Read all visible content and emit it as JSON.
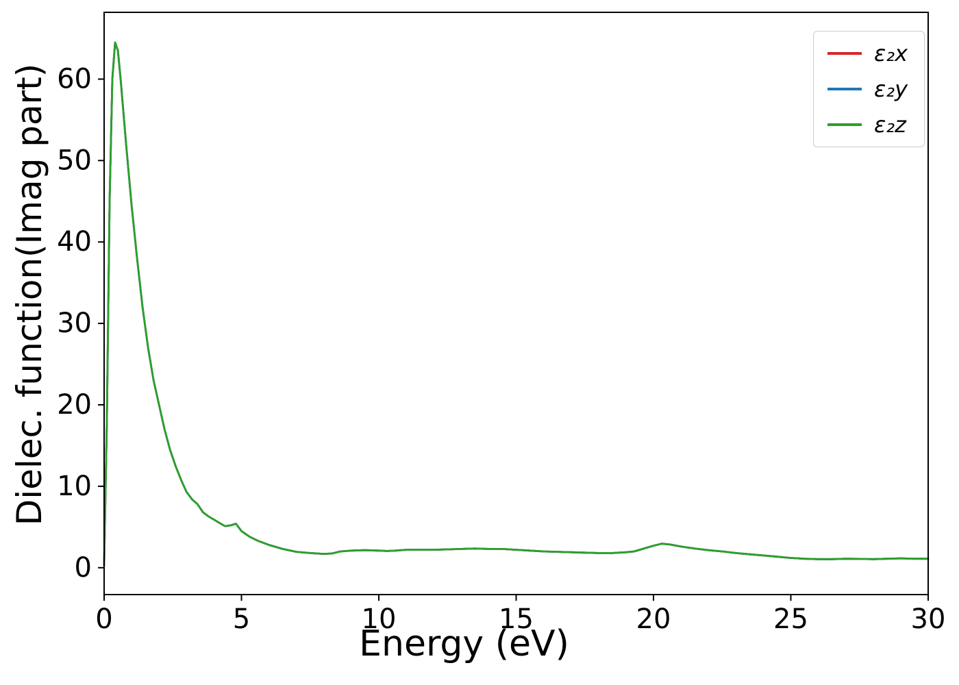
{
  "chart_data": {
    "type": "line",
    "title": "",
    "xlabel": "Energy (eV)",
    "ylabel": "Dielec. function(Imag part)",
    "xlim": [
      0,
      30
    ],
    "ylim": [
      -3.3,
      68.2
    ],
    "x_ticks": [
      0,
      5,
      10,
      15,
      20,
      25,
      30
    ],
    "y_ticks": [
      0,
      10,
      20,
      30,
      40,
      50,
      60
    ],
    "grid": false,
    "legend_position": "upper right",
    "axis_color": "#000000",
    "x": [
      0,
      0.1,
      0.2,
      0.3,
      0.4,
      0.5,
      0.6,
      0.8,
      1.0,
      1.2,
      1.4,
      1.6,
      1.8,
      2.0,
      2.2,
      2.4,
      2.6,
      2.8,
      3.0,
      3.2,
      3.4,
      3.6,
      3.8,
      4.0,
      4.2,
      4.4,
      4.6,
      4.8,
      5.0,
      5.3,
      5.6,
      6.0,
      6.5,
      7.0,
      7.5,
      8.0,
      8.3,
      8.6,
      9.0,
      9.5,
      10.0,
      10.3,
      10.6,
      11.0,
      11.5,
      12.0,
      12.5,
      13.0,
      13.5,
      14.0,
      14.5,
      15.0,
      15.5,
      16.0,
      16.5,
      17.0,
      17.5,
      18.0,
      18.5,
      19.0,
      19.3,
      19.6,
      20.0,
      20.3,
      20.6,
      21.0,
      21.5,
      22.0,
      22.5,
      23.0,
      23.5,
      24.0,
      24.5,
      25.0,
      25.5,
      26.0,
      26.5,
      27.0,
      27.5,
      28.0,
      28.5,
      29.0,
      29.5,
      30.0
    ],
    "series": [
      {
        "name": "ε₂x",
        "color": "#d62728",
        "values": [
          0.3,
          18,
          45,
          60,
          64.5,
          63.5,
          60,
          52,
          44.5,
          38,
          32,
          27,
          23,
          20,
          17,
          14.5,
          12.5,
          10.8,
          9.3,
          8.4,
          7.8,
          6.8,
          6.3,
          5.9,
          5.5,
          5.1,
          5.2,
          5.4,
          4.5,
          3.8,
          3.3,
          2.8,
          2.3,
          1.95,
          1.8,
          1.7,
          1.75,
          2.0,
          2.1,
          2.15,
          2.1,
          2.05,
          2.1,
          2.2,
          2.2,
          2.2,
          2.25,
          2.3,
          2.35,
          2.3,
          2.3,
          2.2,
          2.1,
          2.0,
          1.95,
          1.9,
          1.85,
          1.8,
          1.8,
          1.9,
          2.0,
          2.3,
          2.7,
          2.95,
          2.85,
          2.6,
          2.35,
          2.15,
          2.0,
          1.8,
          1.65,
          1.5,
          1.35,
          1.2,
          1.1,
          1.05,
          1.05,
          1.1,
          1.08,
          1.05,
          1.1,
          1.15,
          1.1,
          1.1
        ]
      },
      {
        "name": "ε₂y",
        "color": "#1f77b4",
        "values": [
          0.3,
          18,
          45,
          60,
          64.5,
          63.5,
          60,
          52,
          44.5,
          38,
          32,
          27,
          23,
          20,
          17,
          14.5,
          12.5,
          10.8,
          9.3,
          8.4,
          7.8,
          6.8,
          6.3,
          5.9,
          5.5,
          5.1,
          5.2,
          5.4,
          4.5,
          3.8,
          3.3,
          2.8,
          2.3,
          1.95,
          1.8,
          1.7,
          1.75,
          2.0,
          2.1,
          2.15,
          2.1,
          2.05,
          2.1,
          2.2,
          2.2,
          2.2,
          2.25,
          2.3,
          2.35,
          2.3,
          2.3,
          2.2,
          2.1,
          2.0,
          1.95,
          1.9,
          1.85,
          1.8,
          1.8,
          1.9,
          2.0,
          2.3,
          2.7,
          2.95,
          2.85,
          2.6,
          2.35,
          2.15,
          2.0,
          1.8,
          1.65,
          1.5,
          1.35,
          1.2,
          1.1,
          1.05,
          1.05,
          1.1,
          1.08,
          1.05,
          1.1,
          1.15,
          1.1,
          1.1
        ]
      },
      {
        "name": "ε₂z",
        "color": "#2ca02c",
        "values": [
          0.3,
          18,
          45,
          60,
          64.5,
          63.5,
          60,
          52,
          44.5,
          38,
          32,
          27,
          23,
          20,
          17,
          14.5,
          12.5,
          10.8,
          9.3,
          8.4,
          7.8,
          6.8,
          6.3,
          5.9,
          5.5,
          5.1,
          5.2,
          5.4,
          4.5,
          3.8,
          3.3,
          2.8,
          2.3,
          1.95,
          1.8,
          1.7,
          1.75,
          2.0,
          2.1,
          2.15,
          2.1,
          2.05,
          2.1,
          2.2,
          2.2,
          2.2,
          2.25,
          2.3,
          2.35,
          2.3,
          2.3,
          2.2,
          2.1,
          2.0,
          1.95,
          1.9,
          1.85,
          1.8,
          1.8,
          1.9,
          2.0,
          2.3,
          2.7,
          2.95,
          2.85,
          2.6,
          2.35,
          2.15,
          2.0,
          1.8,
          1.65,
          1.5,
          1.35,
          1.2,
          1.1,
          1.05,
          1.05,
          1.1,
          1.08,
          1.05,
          1.1,
          1.15,
          1.1,
          1.1
        ]
      }
    ]
  }
}
